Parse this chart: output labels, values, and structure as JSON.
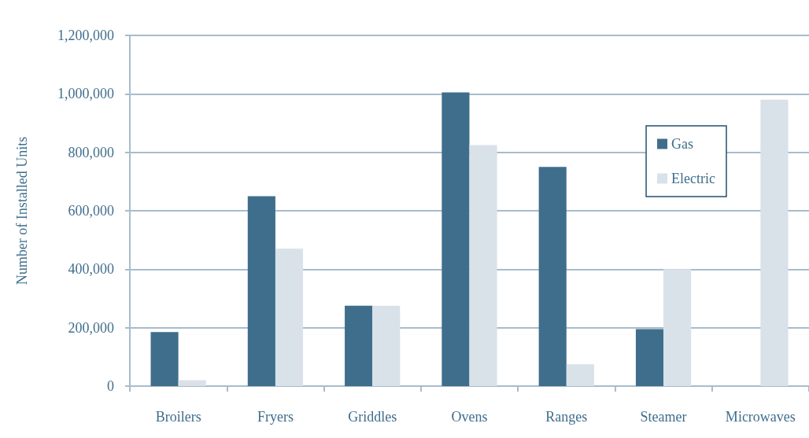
{
  "chart_data": {
    "type": "bar",
    "ylabel": "Number of Installed Units",
    "categories": [
      "Broilers",
      "Fryers",
      "Griddles",
      "Ovens",
      "Ranges",
      "Steamer",
      "Microwaves"
    ],
    "series": [
      {
        "name": "Gas",
        "color": "#3f6e8c",
        "values": [
          185000,
          650000,
          275000,
          1005000,
          750000,
          195000,
          null
        ]
      },
      {
        "name": "Electric",
        "color": "#d9e1e9",
        "values": [
          20000,
          470000,
          275000,
          825000,
          75000,
          400000,
          980000
        ]
      }
    ],
    "ylim": [
      0,
      1200000
    ],
    "yticks": [
      0,
      {
        "value": 200000,
        "label": "200,000"
      },
      {
        "value": 400000,
        "label": "400,000"
      },
      {
        "value": 600000,
        "label": "600,000"
      },
      {
        "value": 800000,
        "label": "800,000"
      },
      {
        "value": 1000000,
        "label": "1,000,000"
      },
      {
        "value": 1200000,
        "label": "1,200,000"
      }
    ],
    "grid": "y",
    "legend": "right"
  }
}
